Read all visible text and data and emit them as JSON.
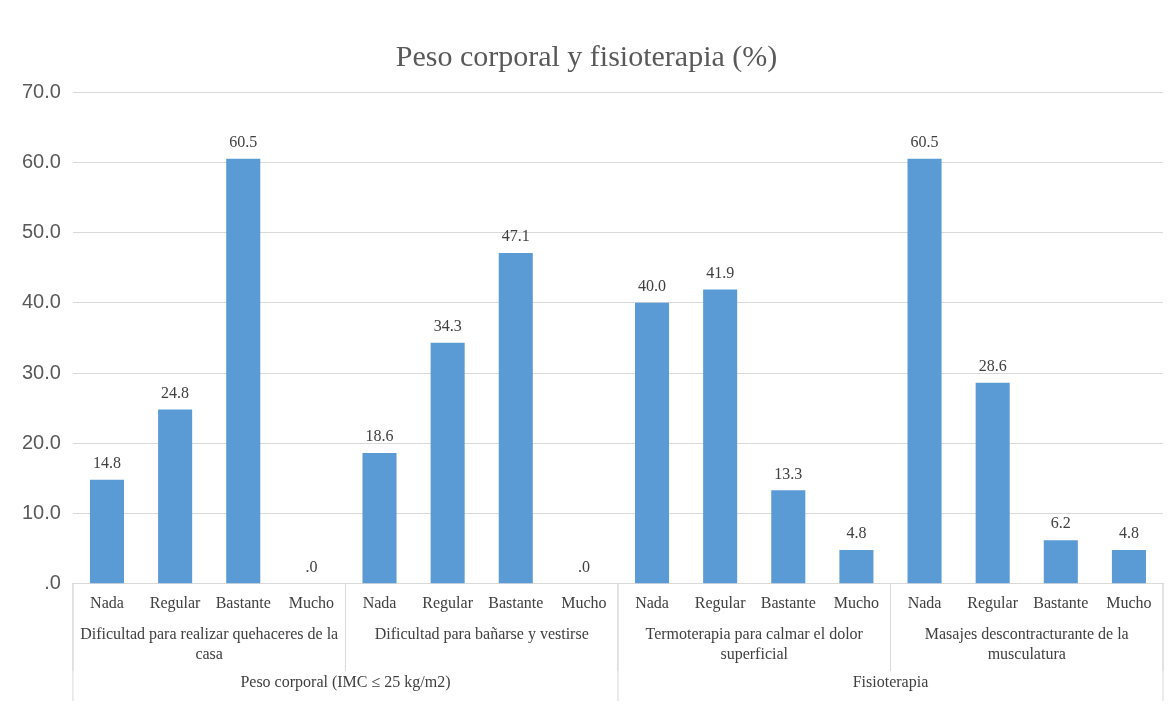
{
  "chart_data": {
    "type": "bar",
    "title": "Peso corporal y fisioterapia (%)",
    "categories": [
      "Nada",
      "Regular",
      "Bastante",
      "Mucho",
      "Nada",
      "Regular",
      "Bastante",
      "Mucho",
      "Nada",
      "Regular",
      "Bastante",
      "Mucho",
      "Nada",
      "Regular",
      "Bastante",
      "Mucho"
    ],
    "values": [
      14.8,
      24.8,
      60.5,
      0,
      18.6,
      34.3,
      47.1,
      0,
      40.0,
      41.9,
      13.3,
      4.8,
      60.5,
      28.6,
      6.2,
      4.8
    ],
    "value_labels": [
      "14.8",
      "24.8",
      "60.5",
      ".0",
      "18.6",
      "34.3",
      "47.1",
      ".0",
      "40.0",
      "41.9",
      "13.3",
      "4.8",
      "60.5",
      "28.6",
      "6.2",
      "4.8"
    ],
    "color": "#5b9bd5",
    "ylim": [
      0,
      70
    ],
    "yticks": [
      {
        "value": 0,
        "label": ".0"
      },
      {
        "value": 10,
        "label": "10.0"
      },
      {
        "value": 20,
        "label": "20.0"
      },
      {
        "value": 30,
        "label": "30.0"
      },
      {
        "value": 40,
        "label": "40.0"
      },
      {
        "value": 50,
        "label": "50.0"
      },
      {
        "value": 60,
        "label": "60.0"
      },
      {
        "value": 70,
        "label": "70.0"
      }
    ],
    "grid": "y",
    "annotations": [
      "Dificultad para realizar quehaceres de la casa",
      "Dificultad para bañarse y vestirse",
      "Termoterapia para calmar el dolor superficial",
      "Masajes descontracturante de la musculatura",
      "Peso corporal (IMC ≤ 25 kg/m2)",
      "Fisioterapia"
    ]
  }
}
